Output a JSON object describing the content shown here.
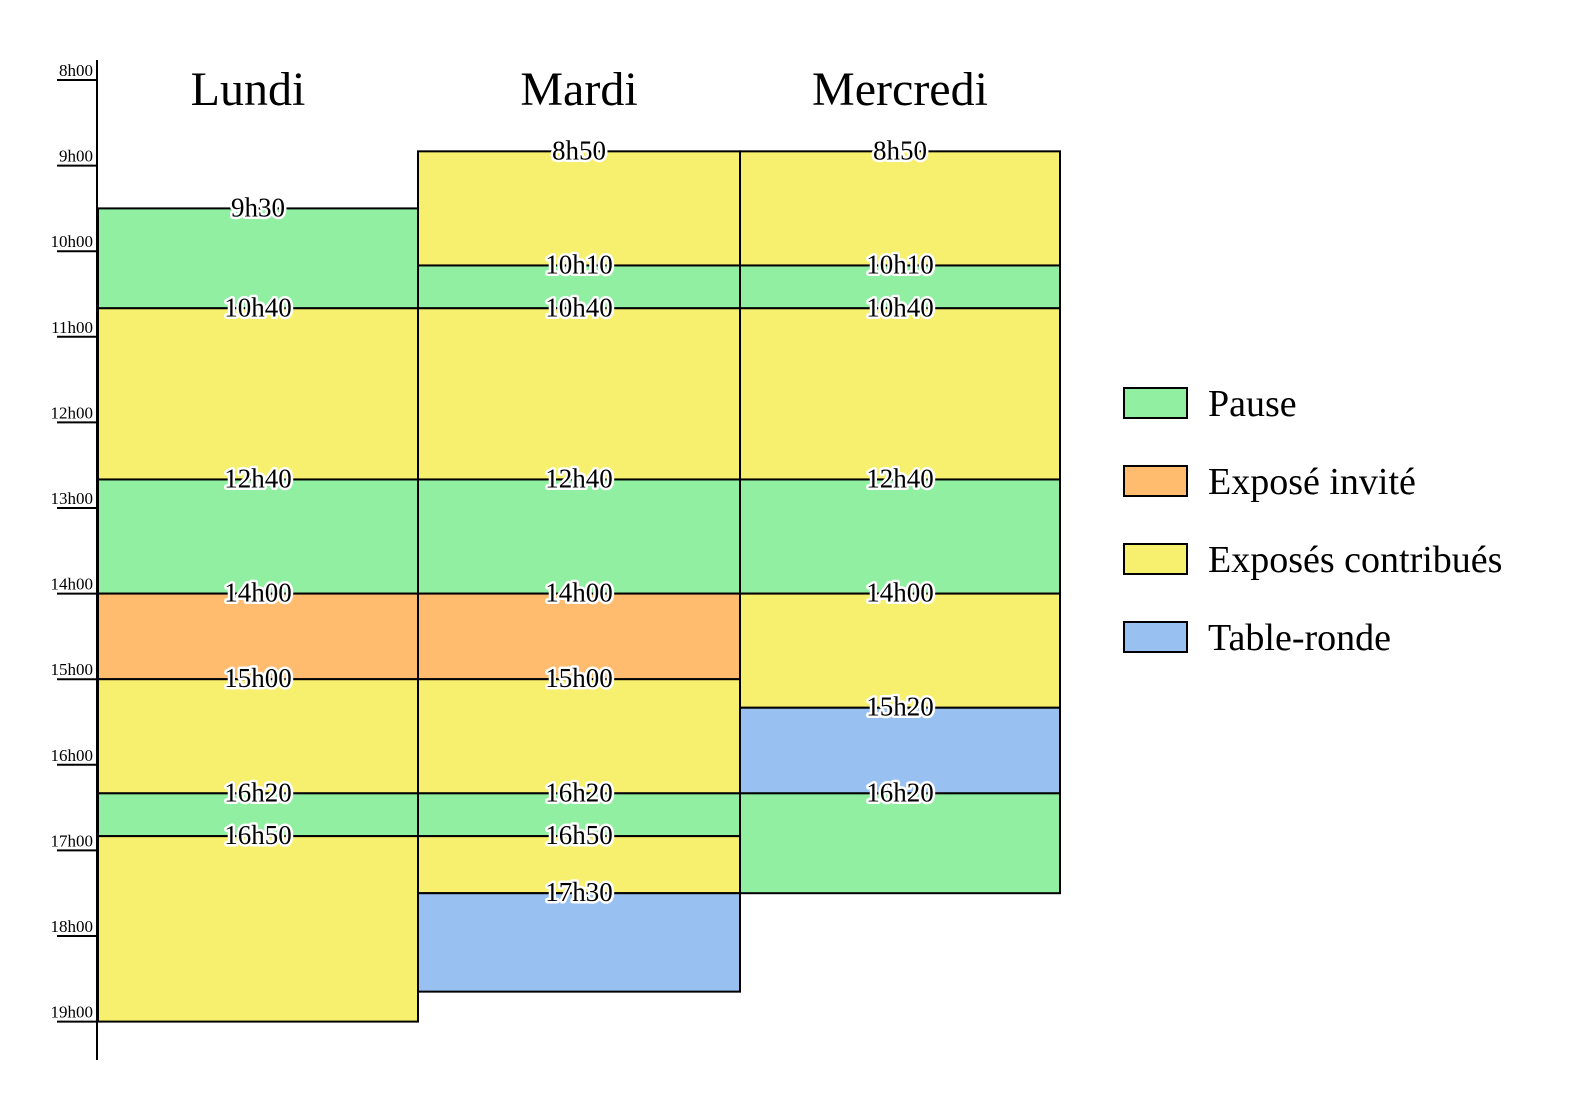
{
  "colors": {
    "pause": "#90efa0",
    "invite": "#ffbb6e",
    "contribue": "#f7ef6e",
    "table": "#98c1f2"
  },
  "axis": {
    "ticks": [
      "8h00",
      "9h00",
      "10h00",
      "11h00",
      "12h00",
      "13h00",
      "14h00",
      "15h00",
      "16h00",
      "17h00",
      "18h00",
      "19h00"
    ]
  },
  "days": [
    {
      "name": "Lundi",
      "end_hours": 19.0,
      "blocks": [
        {
          "start": "9h30",
          "type": "pause"
        },
        {
          "start": "10h40",
          "type": "contribue"
        },
        {
          "start": "12h40",
          "type": "pause"
        },
        {
          "start": "14h00",
          "type": "invite"
        },
        {
          "start": "15h00",
          "type": "contribue"
        },
        {
          "start": "16h20",
          "type": "pause"
        },
        {
          "start": "16h50",
          "type": "contribue"
        }
      ]
    },
    {
      "name": "Mardi",
      "end_hours": 18.65,
      "blocks": [
        {
          "start": "8h50",
          "type": "contribue"
        },
        {
          "start": "10h10",
          "type": "pause"
        },
        {
          "start": "10h40",
          "type": "contribue"
        },
        {
          "start": "12h40",
          "type": "pause"
        },
        {
          "start": "14h00",
          "type": "invite"
        },
        {
          "start": "15h00",
          "type": "contribue"
        },
        {
          "start": "16h20",
          "type": "pause"
        },
        {
          "start": "16h50",
          "type": "contribue"
        },
        {
          "start": "17h30",
          "type": "table"
        }
      ]
    },
    {
      "name": "Mercredi",
      "end_hours": 17.5,
      "blocks": [
        {
          "start": "8h50",
          "type": "contribue"
        },
        {
          "start": "10h10",
          "type": "pause"
        },
        {
          "start": "10h40",
          "type": "contribue"
        },
        {
          "start": "12h40",
          "type": "pause"
        },
        {
          "start": "14h00",
          "type": "contribue"
        },
        {
          "start": "15h20",
          "type": "table"
        },
        {
          "start": "16h20",
          "type": "pause"
        }
      ]
    }
  ],
  "legend": [
    {
      "type": "pause",
      "label": "Pause"
    },
    {
      "type": "invite",
      "label": "Exposé invité"
    },
    {
      "type": "contribue",
      "label": "Exposés contribués"
    },
    {
      "type": "table",
      "label": "Table-ronde"
    }
  ]
}
